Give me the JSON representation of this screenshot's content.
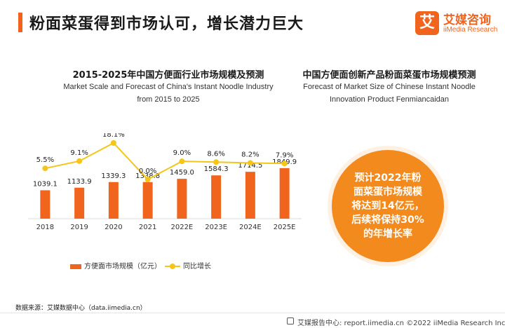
{
  "header": {
    "title": "粉面菜蛋得到市场认可，增长潜力巨大",
    "logo_mark": "艾",
    "logo_cn": "艾媒咨询",
    "logo_en": "iiMedia Research"
  },
  "left_chart": {
    "title_cn": "2015-2025年中国方便面行业市场规模及预测",
    "title_en_line1": "Market Scale and Forecast of China's Instant Noodle Industry",
    "title_en_line2": "from 2015 to 2025"
  },
  "chart_data": {
    "type": "bar",
    "categories": [
      "2018",
      "2019",
      "2020",
      "2021",
      "2022E",
      "2023E",
      "2024E",
      "2025E"
    ],
    "series": [
      {
        "name": "方便面市场规模（亿元）",
        "type": "bar",
        "color": "#f0641e",
        "values": [
          1039.1,
          1133.9,
          1339.3,
          1338.8,
          1459.0,
          1584.3,
          1714.5,
          1849.9
        ],
        "labels": [
          "1039.1",
          "1133.9",
          "1339.3",
          "1338.8",
          "1459.0",
          "1584.3",
          "1714.5",
          "1849.9"
        ]
      },
      {
        "name": "同比增长",
        "type": "line",
        "color": "#f5c518",
        "values": [
          5.5,
          9.1,
          18.1,
          0.0,
          9.0,
          8.6,
          8.2,
          7.9
        ],
        "labels": [
          "5.5%",
          "9.1%",
          "18.1%",
          "0.0%",
          "9.0%",
          "8.6%",
          "8.2%",
          "7.9%"
        ]
      }
    ],
    "title": "2015-2025年中国方便面行业市场规模及预测",
    "legend_position": "bottom",
    "grid": false
  },
  "right_panel": {
    "title_cn": "中国方便面创新产品粉面菜蛋市场规模预测",
    "title_en_line1": "Forecast of Market Size of Chinese Instant Noodle",
    "title_en_line2": "Innovation Product Fenmiancaidan",
    "circle_lines": [
      "预计2022年粉",
      "面菜蛋市场规模",
      "将达到14亿元，",
      "后续将保持30%",
      "的年增长率"
    ]
  },
  "source": "数据来源：艾媒数据中心（data.iimedia.cn）",
  "footer": "艾媒报告中心: report.iimedia.cn  ©2022  iiMedia Research Inc",
  "colors": {
    "accent": "#f0641e",
    "line": "#f5c518",
    "circle": "#f38a1d"
  }
}
